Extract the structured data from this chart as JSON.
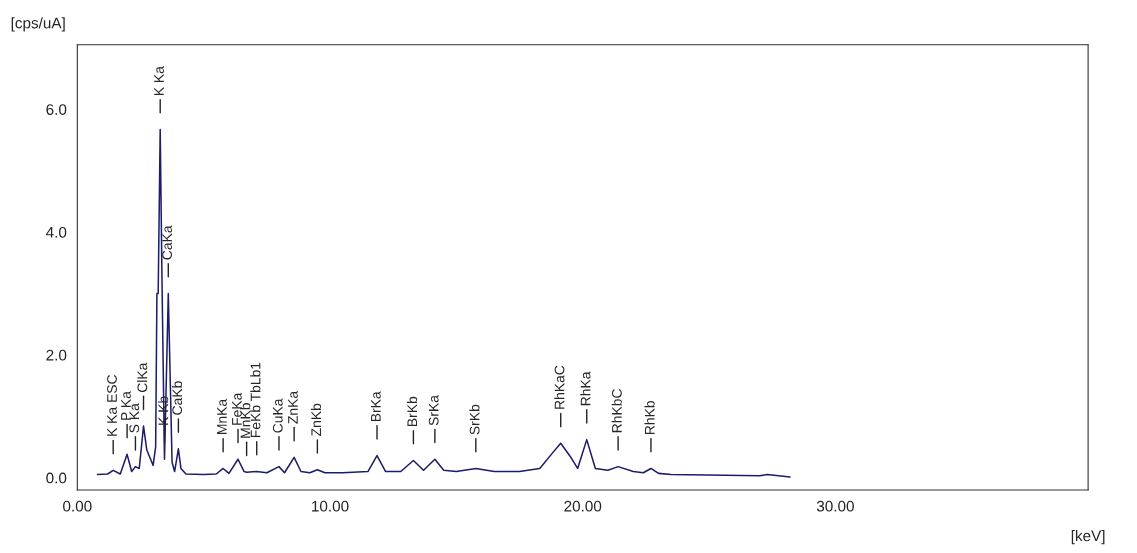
{
  "chart_data": {
    "type": "line",
    "xlabel": "[keV]",
    "ylabel": "[cps/uA]",
    "x": [
      0.8,
      1.2,
      1.42,
      1.7,
      1.97,
      2.15,
      2.3,
      2.45,
      2.62,
      2.75,
      2.9,
      3.0,
      3.1,
      3.15,
      3.2,
      3.28,
      3.35,
      3.45,
      3.6,
      3.75,
      3.85,
      4.0,
      4.1,
      4.3,
      5.0,
      5.5,
      5.77,
      6.0,
      6.36,
      6.6,
      6.7,
      7.1,
      7.5,
      7.98,
      8.2,
      8.58,
      8.85,
      9.2,
      9.5,
      9.8,
      10.5,
      11.5,
      11.86,
      12.2,
      12.8,
      13.3,
      13.7,
      14.15,
      14.5,
      15.0,
      15.77,
      16.5,
      17.5,
      18.3,
      18.8,
      19.13,
      19.5,
      19.8,
      20.16,
      20.5,
      21.0,
      21.4,
      22.0,
      22.4,
      22.7,
      23.0,
      23.5,
      27.0,
      27.3,
      28.2
    ],
    "series": [
      {
        "color": "#1c1c6b",
        "values": [
          0.05,
          0.06,
          0.12,
          0.06,
          0.38,
          0.1,
          0.18,
          0.15,
          0.84,
          0.45,
          0.3,
          0.2,
          0.5,
          3.0,
          3.0,
          5.67,
          3.25,
          0.3,
          3.0,
          0.25,
          0.1,
          0.47,
          0.15,
          0.06,
          0.05,
          0.06,
          0.15,
          0.07,
          0.3,
          0.1,
          0.09,
          0.1,
          0.08,
          0.18,
          0.08,
          0.33,
          0.1,
          0.08,
          0.13,
          0.08,
          0.08,
          0.1,
          0.36,
          0.1,
          0.1,
          0.28,
          0.12,
          0.3,
          0.12,
          0.1,
          0.15,
          0.1,
          0.1,
          0.15,
          0.4,
          0.56,
          0.35,
          0.15,
          0.62,
          0.15,
          0.12,
          0.18,
          0.1,
          0.08,
          0.15,
          0.07,
          0.05,
          0.03,
          0.05,
          0.01
        ]
      }
    ],
    "xlim": [
      0,
      40
    ],
    "ylim": [
      -0.2,
      7.05
    ],
    "xticks": [
      {
        "value": 0,
        "label": "0.00"
      },
      {
        "value": 10,
        "label": "10.00"
      },
      {
        "value": 20,
        "label": "20.00"
      },
      {
        "value": 30,
        "label": "30.00"
      }
    ],
    "yticks": [
      {
        "value": 0,
        "label": "0.0"
      },
      {
        "value": 2,
        "label": "2.0"
      },
      {
        "value": 4,
        "label": "4.0"
      },
      {
        "value": 6,
        "label": "6.0"
      }
    ],
    "grid": false,
    "marker": "none",
    "line_style": "solid",
    "annotations": [
      {
        "text": "K Ka ESC",
        "x": 1.42,
        "y": 0.12
      },
      {
        "text": "P Ka",
        "x": 1.97,
        "y": 0.38
      },
      {
        "text": "S Ka",
        "x": 2.3,
        "y": 0.18
      },
      {
        "text": "ClKa",
        "x": 2.62,
        "y": 0.84
      },
      {
        "text": "K Ka",
        "x": 3.28,
        "y": 5.67
      },
      {
        "text": "K Kb",
        "x": 3.45,
        "y": 0.3
      },
      {
        "text": "CaKa",
        "x": 3.6,
        "y": 3.0
      },
      {
        "text": "CaKb",
        "x": 4.0,
        "y": 0.47
      },
      {
        "text": "MnKa",
        "x": 5.77,
        "y": 0.15
      },
      {
        "text": "FeKa",
        "x": 6.36,
        "y": 0.3
      },
      {
        "text": "MnKb",
        "x": 6.7,
        "y": 0.09
      },
      {
        "text": "FeKb TbLb1",
        "x": 7.1,
        "y": 0.1
      },
      {
        "text": "CuKa",
        "x": 7.98,
        "y": 0.18
      },
      {
        "text": "ZnKa",
        "x": 8.58,
        "y": 0.33
      },
      {
        "text": "ZnKb",
        "x": 9.5,
        "y": 0.13
      },
      {
        "text": "BrKa",
        "x": 11.86,
        "y": 0.36
      },
      {
        "text": "BrKb",
        "x": 13.3,
        "y": 0.28
      },
      {
        "text": "SrKa",
        "x": 14.15,
        "y": 0.3
      },
      {
        "text": "SrKb",
        "x": 15.77,
        "y": 0.15
      },
      {
        "text": "RhKaC",
        "x": 19.13,
        "y": 0.56
      },
      {
        "text": "RhKa",
        "x": 20.16,
        "y": 0.62
      },
      {
        "text": "RhKbC",
        "x": 21.4,
        "y": 0.18
      },
      {
        "text": "RhKb",
        "x": 22.7,
        "y": 0.15
      }
    ]
  }
}
